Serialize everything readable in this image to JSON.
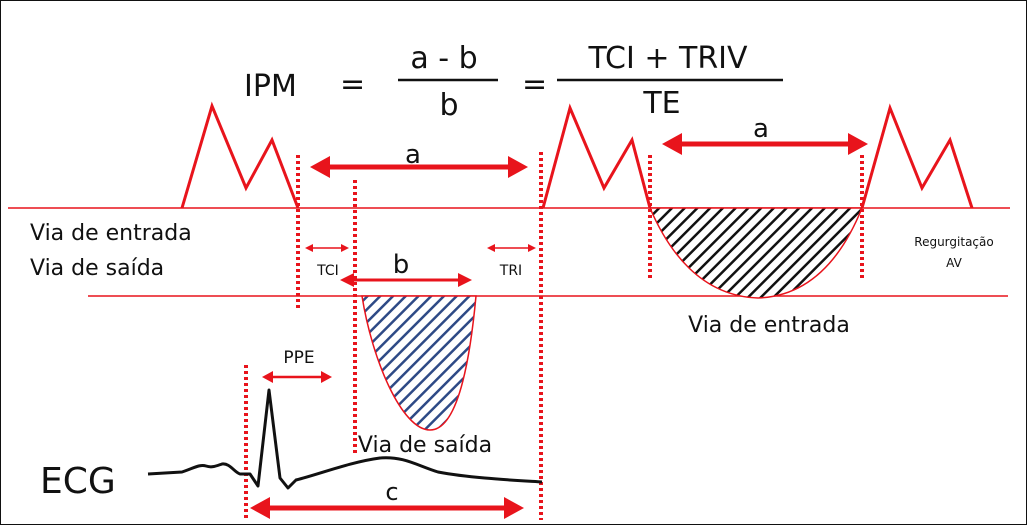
{
  "formula": {
    "lhs": "IPM",
    "eq1": "=",
    "frac1_num": "a - b",
    "frac1_den": "b",
    "eq2": "=",
    "frac2_num": "TCI + TRIV",
    "frac2_den": "TE"
  },
  "labels": {
    "a_left": "a",
    "a_right": "a",
    "b": "b",
    "c": "c",
    "tci": "TCI",
    "tri": "TRI",
    "ppe": "PPE",
    "inflow_row": "Via de entrada",
    "outflow_row": "Via de saída",
    "inflow_curve": "Via de entrada",
    "outflow_curve": "Via de saída",
    "regurg_line1": "Regurgitação",
    "regurg_line2": "AV",
    "ecg": "ECG"
  },
  "colors": {
    "red": "#e8141c",
    "black": "#111111",
    "outflow_hatch": "#2e4a86",
    "inflow_hatch": "#111111"
  }
}
